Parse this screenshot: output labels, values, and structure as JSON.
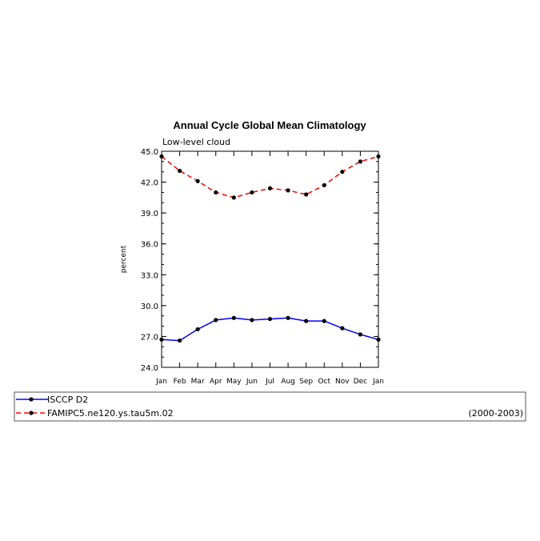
{
  "chart_data": {
    "type": "line",
    "title": "Annual Cycle Global Mean Climatology",
    "subtitle": "Low-level cloud",
    "xlabel": "",
    "ylabel": "percent",
    "categories": [
      "Jan",
      "Feb",
      "Mar",
      "Apr",
      "May",
      "Jun",
      "Jul",
      "Aug",
      "Sep",
      "Oct",
      "Nov",
      "Dec",
      "Jan"
    ],
    "ylim": [
      24.0,
      45.0
    ],
    "yticks": [
      "24.0",
      "27.0",
      "30.0",
      "33.0",
      "36.0",
      "39.0",
      "42.0",
      "45.0"
    ],
    "grid": false,
    "series": [
      {
        "name": "ISCCP D2",
        "color": "#0000ff",
        "dash": "solid",
        "values": [
          26.7,
          26.6,
          27.7,
          28.6,
          28.8,
          28.6,
          28.7,
          28.8,
          28.5,
          28.5,
          27.8,
          27.2,
          26.7
        ]
      },
      {
        "name": "FAMIPC5.ne120.ys.tau5m.02",
        "color": "#ff0000",
        "dash": "dashed",
        "values": [
          44.5,
          43.1,
          42.1,
          41.0,
          40.5,
          41.0,
          41.4,
          41.2,
          40.8,
          41.7,
          43.0,
          44.0,
          44.5
        ]
      }
    ]
  },
  "legend": {
    "period": "(2000-2003)"
  }
}
